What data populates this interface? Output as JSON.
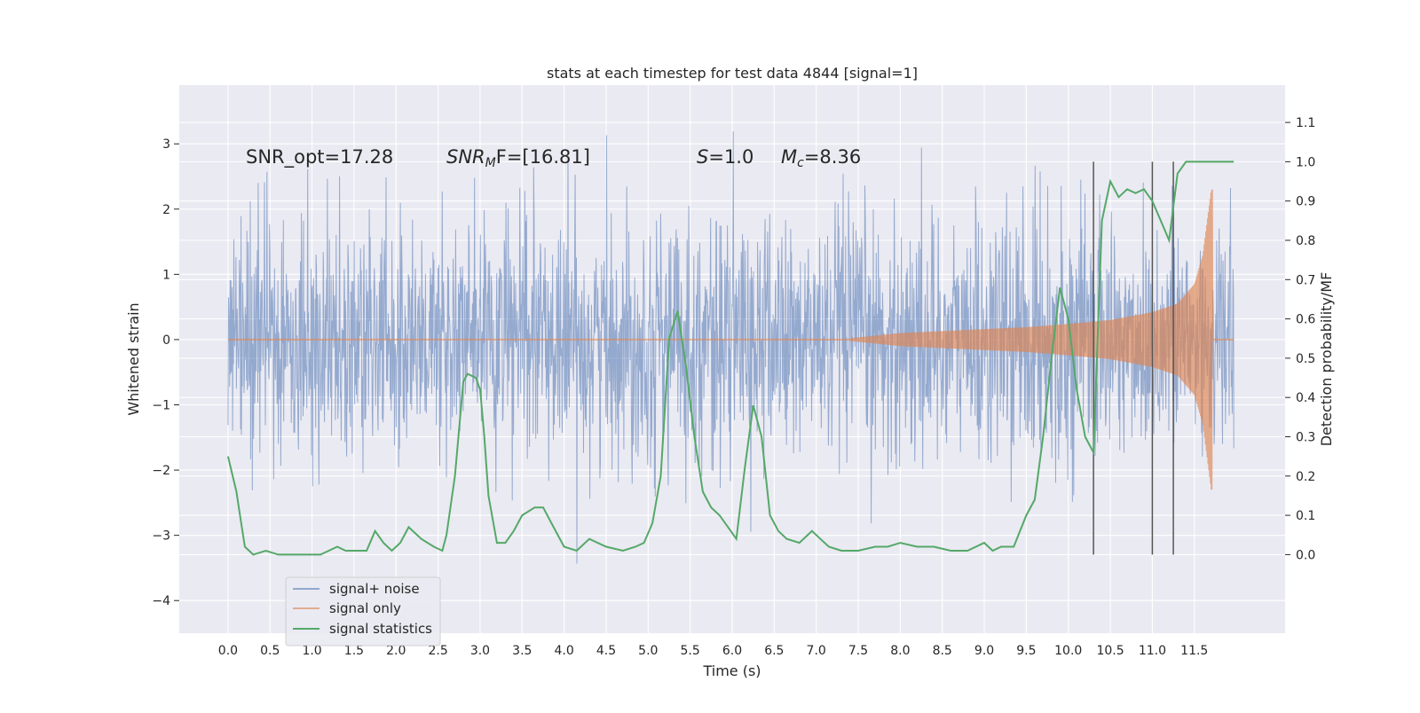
{
  "chart_data": {
    "type": "line",
    "title": "stats at each timestep for test data 4844 [signal=1]",
    "xlabel": "Time (s)",
    "ylabel": "Whitened strain",
    "y2label": "Detection probability/MF",
    "xlim": [
      -0.58,
      12.58
    ],
    "ylim": [
      -4.5,
      3.9
    ],
    "y2lim": [
      -0.2,
      1.195
    ],
    "x_ticks": [
      "0.0",
      "0.5",
      "1.0",
      "1.5",
      "2.0",
      "2.5",
      "3.0",
      "3.5",
      "4.0",
      "4.5",
      "5.0",
      "5.5",
      "6.0",
      "6.5",
      "7.0",
      "7.5",
      "8.0",
      "8.5",
      "9.0",
      "9.5",
      "10.0",
      "10.5",
      "11.0",
      "11.5"
    ],
    "y_ticks": [
      "−4",
      "−3",
      "−2",
      "−1",
      "0",
      "1",
      "2",
      "3"
    ],
    "y2_ticks": [
      "0.0",
      "0.1",
      "0.2",
      "0.3",
      "0.4",
      "0.5",
      "0.6",
      "0.7",
      "0.8",
      "0.9",
      "1.0",
      "1.1"
    ],
    "grid": true,
    "legend_position": "lower-left",
    "annotations": [
      {
        "id": "snr-opt",
        "text": "SNR_opt=17.28"
      },
      {
        "id": "snr-mf",
        "base": "SNR",
        "sub": "M",
        "tail": "F=[16.81]"
      },
      {
        "id": "s-value",
        "base": "S",
        "tail": "=1.0"
      },
      {
        "id": "chirp-mass",
        "base": "M",
        "sub": "c",
        "tail": "=8.36"
      }
    ],
    "series": [
      {
        "name": "signal+ noise",
        "color": "#4c72b0",
        "axis": "left",
        "kind": "noise",
        "x_range": [
          0.0,
          11.97
        ],
        "typical_amplitude": 1.5,
        "peak_range": [
          -4.1,
          3.6
        ]
      },
      {
        "name": "signal only",
        "color": "#dd8452",
        "axis": "left",
        "kind": "chirp",
        "x_range": [
          0.0,
          11.97
        ],
        "onset": 7.4,
        "merger": 11.72,
        "envelope_x": [
          7.4,
          8.0,
          8.5,
          9.0,
          9.5,
          10.0,
          10.5,
          11.0,
          11.3,
          11.5,
          11.6,
          11.65,
          11.7
        ],
        "envelope_y": [
          0.02,
          0.1,
          0.13,
          0.16,
          0.19,
          0.24,
          0.3,
          0.42,
          0.55,
          0.85,
          1.3,
          1.8,
          2.3
        ]
      },
      {
        "name": "signal statistics",
        "color": "#55a868",
        "axis": "right",
        "x": [
          0.0,
          0.1,
          0.15,
          0.2,
          0.3,
          0.45,
          0.6,
          0.8,
          1.0,
          1.1,
          1.2,
          1.3,
          1.4,
          1.55,
          1.65,
          1.75,
          1.85,
          1.95,
          2.05,
          2.15,
          2.3,
          2.45,
          2.55,
          2.6,
          2.7,
          2.8,
          2.85,
          2.95,
          3.0,
          3.05,
          3.1,
          3.2,
          3.3,
          3.4,
          3.5,
          3.65,
          3.75,
          3.85,
          4.0,
          4.15,
          4.3,
          4.5,
          4.7,
          4.85,
          4.95,
          5.05,
          5.15,
          5.25,
          5.35,
          5.45,
          5.55,
          5.65,
          5.75,
          5.85,
          5.95,
          6.05,
          6.15,
          6.25,
          6.35,
          6.45,
          6.55,
          6.65,
          6.8,
          6.95,
          7.05,
          7.15,
          7.3,
          7.5,
          7.7,
          7.85,
          8.0,
          8.2,
          8.4,
          8.6,
          8.8,
          9.0,
          9.1,
          9.2,
          9.35,
          9.5,
          9.6,
          9.7,
          9.8,
          9.9,
          10.0,
          10.1,
          10.2,
          10.3,
          10.4,
          10.5,
          10.6,
          10.7,
          10.8,
          10.9,
          11.0,
          11.1,
          11.2,
          11.3,
          11.4,
          11.5,
          11.6,
          11.7,
          11.97
        ],
        "y": [
          0.25,
          0.16,
          0.09,
          0.02,
          0.0,
          0.01,
          0.0,
          0.0,
          0.0,
          0.0,
          0.01,
          0.02,
          0.01,
          0.01,
          0.01,
          0.06,
          0.03,
          0.01,
          0.03,
          0.07,
          0.04,
          0.02,
          0.01,
          0.05,
          0.2,
          0.44,
          0.46,
          0.45,
          0.42,
          0.3,
          0.15,
          0.03,
          0.03,
          0.06,
          0.1,
          0.12,
          0.12,
          0.08,
          0.02,
          0.01,
          0.04,
          0.02,
          0.01,
          0.02,
          0.03,
          0.08,
          0.2,
          0.55,
          0.62,
          0.48,
          0.3,
          0.16,
          0.12,
          0.1,
          0.07,
          0.04,
          0.22,
          0.38,
          0.3,
          0.1,
          0.06,
          0.04,
          0.03,
          0.06,
          0.04,
          0.02,
          0.01,
          0.01,
          0.02,
          0.02,
          0.03,
          0.02,
          0.02,
          0.01,
          0.01,
          0.03,
          0.01,
          0.02,
          0.02,
          0.1,
          0.14,
          0.3,
          0.5,
          0.68,
          0.6,
          0.42,
          0.3,
          0.26,
          0.85,
          0.95,
          0.91,
          0.93,
          0.92,
          0.93,
          0.9,
          0.85,
          0.8,
          0.97,
          1.0,
          1.0,
          1.0,
          1.0,
          1.0
        ]
      }
    ],
    "vertical_lines": [
      {
        "x": 10.3,
        "y2_from": 0.0,
        "y2_to": 1.0
      },
      {
        "x": 11.0,
        "y2_from": 0.0,
        "y2_to": 1.0
      },
      {
        "x": 11.25,
        "y2_from": 0.0,
        "y2_to": 1.0
      }
    ],
    "colors": {
      "plot_background": "#eaeaf2",
      "grid": "#ffffff",
      "text": "#262626",
      "marker_lines": "#555555",
      "legend_background": "#eaeaf2"
    }
  }
}
